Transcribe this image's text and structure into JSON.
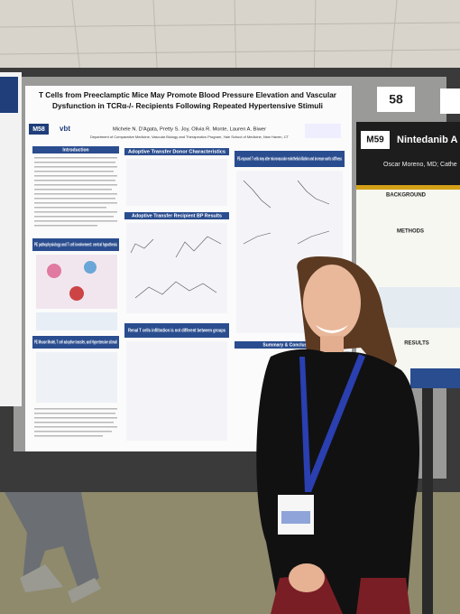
{
  "poster": {
    "board_number": "58",
    "poster_id": "M58",
    "logo": "vbt",
    "title_lines": [
      "T Cells from Preeclamptic Mice May Promote Blood Pressure Elevation and Vascular",
      "Dysfunction in TCRα-/- Recipients Following Repeated Hypertensive Stimuli"
    ],
    "authors": "Michele N. D'Agata, Pretty S. Joy, Olivia R. Monte, Lauren A. Biwer",
    "affiliation": "Department of Comparative Medicine, Vascular Biology and Therapeutics Program, Yale School of Medicine, New Haven, CT",
    "sections": [
      "Introduction",
      "Adoptive Transfer Donor Characteristics",
      "PE-exposed T cells may alter microvascular endothelial dilation and increase aortic stiffness",
      "Adoptive Transfer Recipient BP Results",
      "PE pathophysiology and T cell involvement: central hypothesis",
      "PE Mouse Model, T cell adoptive transfer, and Hypertensive stimuli",
      "Renal T cells infiltration is not different between groups",
      "Summary & Conclusions"
    ]
  },
  "neighbor_poster": {
    "board_number": "M59",
    "title": "Nintedanib A",
    "authors": "Oscar Moreno, MD; Cathe",
    "sections": [
      "BACKGROUND",
      "METHODS",
      "RESULTS"
    ]
  }
}
